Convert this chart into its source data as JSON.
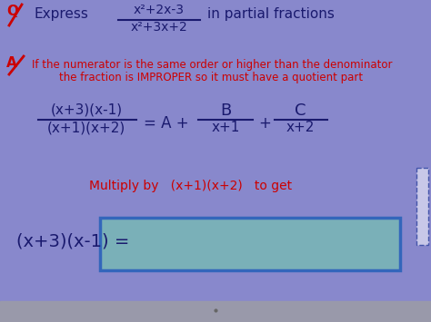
{
  "bg_color": "#8888cc",
  "bottom_bar_color": "#9999aa",
  "box_color": "#7ab0b8",
  "box_border_color": "#3366bb",
  "text_color_dark": "#1a1a6e",
  "text_color_red": "#cc0000",
  "frac_num": "x²+2x-3",
  "frac_den": "x²+3x+2",
  "answer_text1": "If the numerator is the same order or higher than the denominator",
  "answer_text2": "the fraction is IMPROPER so it must have a quotient part",
  "lhs_num": "(x+3)(x-1)",
  "lhs_den": "(x+1)(x+2)",
  "frac2_num": "B",
  "frac2_den": "x+1",
  "frac3_num": "C",
  "frac3_den": "x+2",
  "multiply_text": "Multiply by   (x+1)(x+2)   to get",
  "bottom_lhs": "(x+3)(x-1) =",
  "q_label": "Q",
  "a_label": "A",
  "figsize": [
    4.74,
    3.55
  ],
  "dpi": 100
}
